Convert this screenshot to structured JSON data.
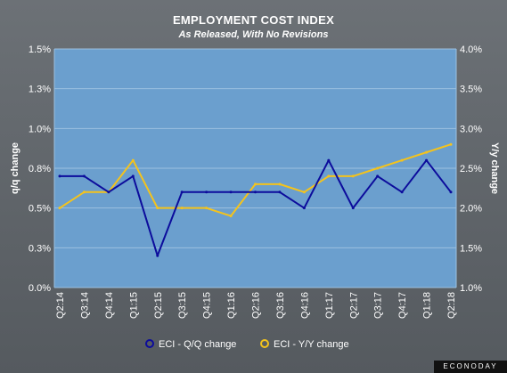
{
  "header": {
    "title": "EMPLOYMENT COST INDEX",
    "subtitle": "As Released, With No Revisions"
  },
  "branding": {
    "logo_text": "ECONODAY"
  },
  "colors": {
    "plot_background": "#6b9fce",
    "grid": "#9cc0e0",
    "qq_series": "#0c0c9c",
    "yy_series": "#f4c31c"
  },
  "chart_data": {
    "type": "line",
    "categories": [
      "Q2:14",
      "Q3:14",
      "Q4:14",
      "Q1:15",
      "Q2:15",
      "Q3:15",
      "Q4:15",
      "Q1:16",
      "Q2:16",
      "Q3:16",
      "Q4:16",
      "Q1:17",
      "Q2:17",
      "Q3:17",
      "Q4:17",
      "Q1:18",
      "Q2:18"
    ],
    "left_axis": {
      "label": "q/q change",
      "range": [
        0,
        1.5
      ],
      "ticks": [
        0,
        0.25,
        0.5,
        0.75,
        1.0,
        1.25,
        1.5
      ],
      "tick_labels": [
        "0.0%",
        "0.3%",
        "0.5%",
        "0.8%",
        "1.0%",
        "1.3%",
        "1.5%"
      ]
    },
    "right_axis": {
      "label": "Y/y change",
      "range": [
        1.0,
        4.0
      ],
      "ticks": [
        1.0,
        1.5,
        2.0,
        2.5,
        3.0,
        3.5,
        4.0
      ],
      "tick_labels": [
        "1.0%",
        "1.5%",
        "2.0%",
        "2.5%",
        "3.0%",
        "3.5%",
        "4.0%"
      ]
    },
    "series": [
      {
        "name": "ECI - Q/Q change",
        "axis": "left",
        "color": "#0c0c9c",
        "values": [
          0.7,
          0.7,
          0.6,
          0.7,
          0.2,
          0.6,
          0.6,
          0.6,
          0.6,
          0.6,
          0.5,
          0.8,
          0.5,
          0.7,
          0.6,
          0.8,
          0.6
        ]
      },
      {
        "name": "ECI - Y/Y change",
        "axis": "right",
        "color": "#f4c31c",
        "values": [
          2.0,
          2.2,
          2.2,
          2.6,
          2.0,
          2.0,
          2.0,
          1.9,
          2.3,
          2.3,
          2.2,
          2.4,
          2.4,
          2.5,
          2.6,
          2.7,
          2.8
        ]
      }
    ],
    "grid": true,
    "legend": "bottom-center"
  }
}
